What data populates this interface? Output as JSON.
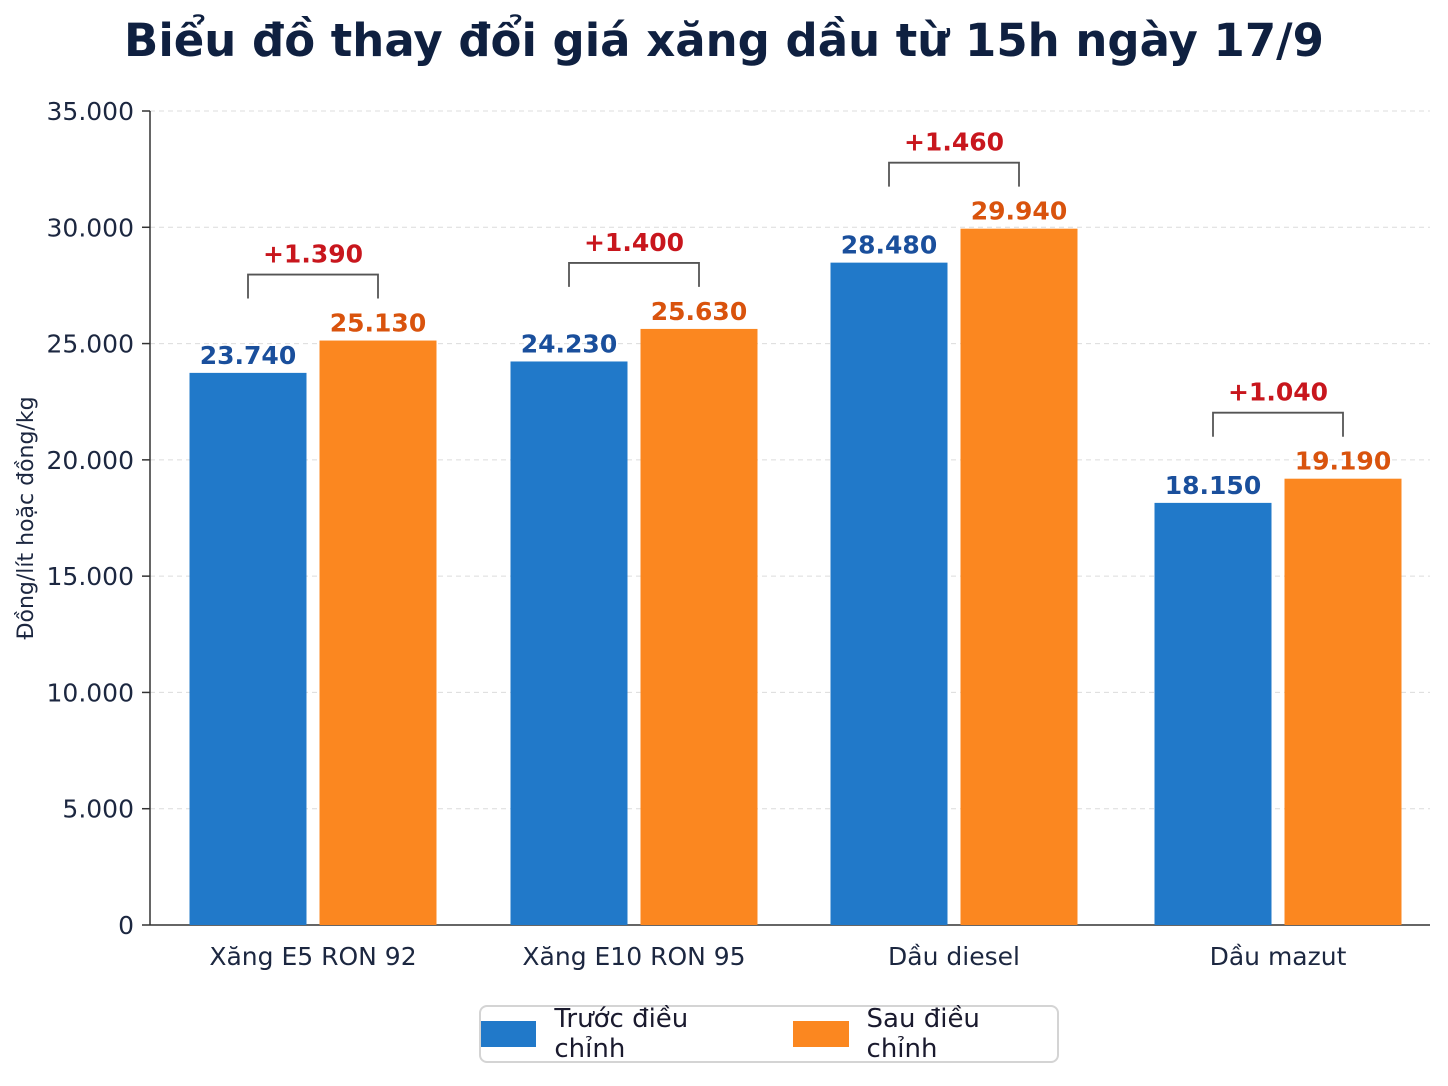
{
  "chart_data": {
    "type": "bar",
    "title": "Biểu đồ thay đổi giá xăng dầu từ 15h ngày 17/9",
    "xlabel": "",
    "ylabel": "Đồng/lít hoặc đồng/kg",
    "ylim": [
      0,
      35000
    ],
    "yticks": [
      0,
      5000,
      10000,
      15000,
      20000,
      25000,
      30000,
      35000
    ],
    "ytick_labels": [
      "0",
      "5.000",
      "10.000",
      "15.000",
      "20.000",
      "25.000",
      "30.000",
      "35.000"
    ],
    "grid": "horizontal dashed",
    "legend_position": "bottom-center",
    "categories": [
      "Xăng E5 RON 92",
      "Xăng E10 RON 95",
      "Dầu diesel",
      "Dầu mazut"
    ],
    "series": [
      {
        "name": "Trước điều chỉnh",
        "color": "#2179c9",
        "label_color": "#1a4f9c",
        "values": [
          23740,
          24230,
          28480,
          18150
        ],
        "labels": [
          "23.740",
          "24.230",
          "28.480",
          "18.150"
        ]
      },
      {
        "name": "Sau điều chỉnh",
        "color": "#fb8720",
        "label_color": "#d9530d",
        "values": [
          25130,
          25630,
          29940,
          19190
        ],
        "labels": [
          "25.130",
          "25.630",
          "29.940",
          "19.190"
        ]
      }
    ],
    "annotations": {
      "color": "#c8161d",
      "labels": [
        "+1.390",
        "+1.400",
        "+1.460",
        "+1.040"
      ]
    }
  }
}
